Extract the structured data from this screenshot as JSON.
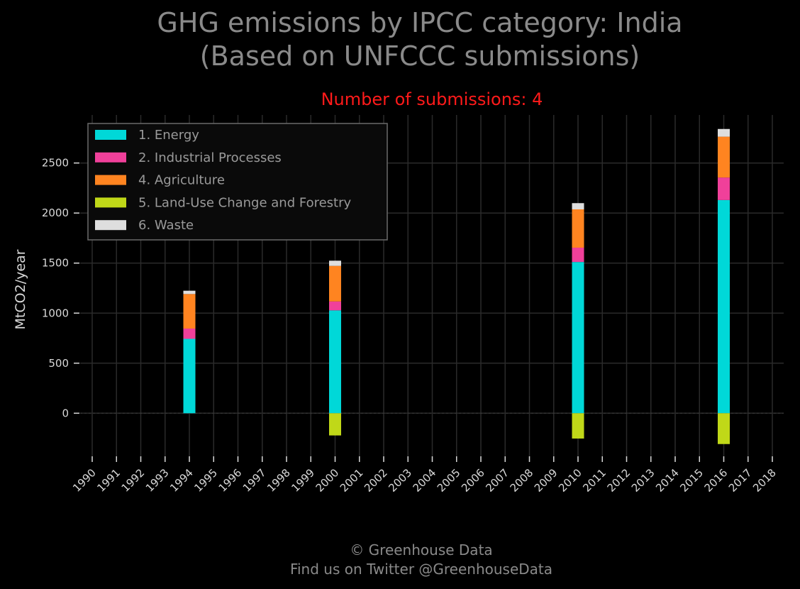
{
  "title_line1": "GHG emissions by IPCC category: India",
  "title_line2": "(Based on UNFCCC submissions)",
  "subtitle": "Number of submissions: 4",
  "footer_line1": "© Greenhouse Data",
  "footer_line2": "Find us on Twitter @GreenhouseData",
  "chart_data": {
    "type": "bar",
    "stacked": true,
    "ylabel": "MtCO2/year",
    "xlabel": "",
    "ylim": [
      -480,
      2980
    ],
    "yticks": [
      0,
      500,
      1000,
      1500,
      2000,
      2500
    ],
    "grid": true,
    "legend_position": "top-left",
    "categories": [
      "1990",
      "1991",
      "1992",
      "1993",
      "1994",
      "1995",
      "1996",
      "1997",
      "1998",
      "1999",
      "2000",
      "2001",
      "2002",
      "2003",
      "2004",
      "2005",
      "2006",
      "2007",
      "2008",
      "2009",
      "2010",
      "2011",
      "2012",
      "2013",
      "2014",
      "2015",
      "2016",
      "2017",
      "2018"
    ],
    "series": [
      {
        "name": "1. Energy",
        "color": "#00d8d8",
        "values": {
          "1994": 743,
          "2000": 1028,
          "2010": 1511,
          "2016": 2130
        }
      },
      {
        "name": "2. Industrial Processes",
        "color": "#f0409a",
        "values": {
          "1994": 103,
          "2000": 89,
          "2010": 143,
          "2016": 225
        }
      },
      {
        "name": "4. Agriculture",
        "color": "#ff8420",
        "values": {
          "1994": 345,
          "2000": 355,
          "2010": 383,
          "2016": 408
        }
      },
      {
        "name": "5. Land-Use Change and Forestry",
        "color": "#c0d818",
        "values": {
          "1994": 0,
          "2000": -222,
          "2010": -253,
          "2016": -308
        }
      },
      {
        "name": "6. Waste",
        "color": "#dedede",
        "values": {
          "1994": 33,
          "2000": 52,
          "2010": 62,
          "2016": 77
        }
      }
    ]
  }
}
